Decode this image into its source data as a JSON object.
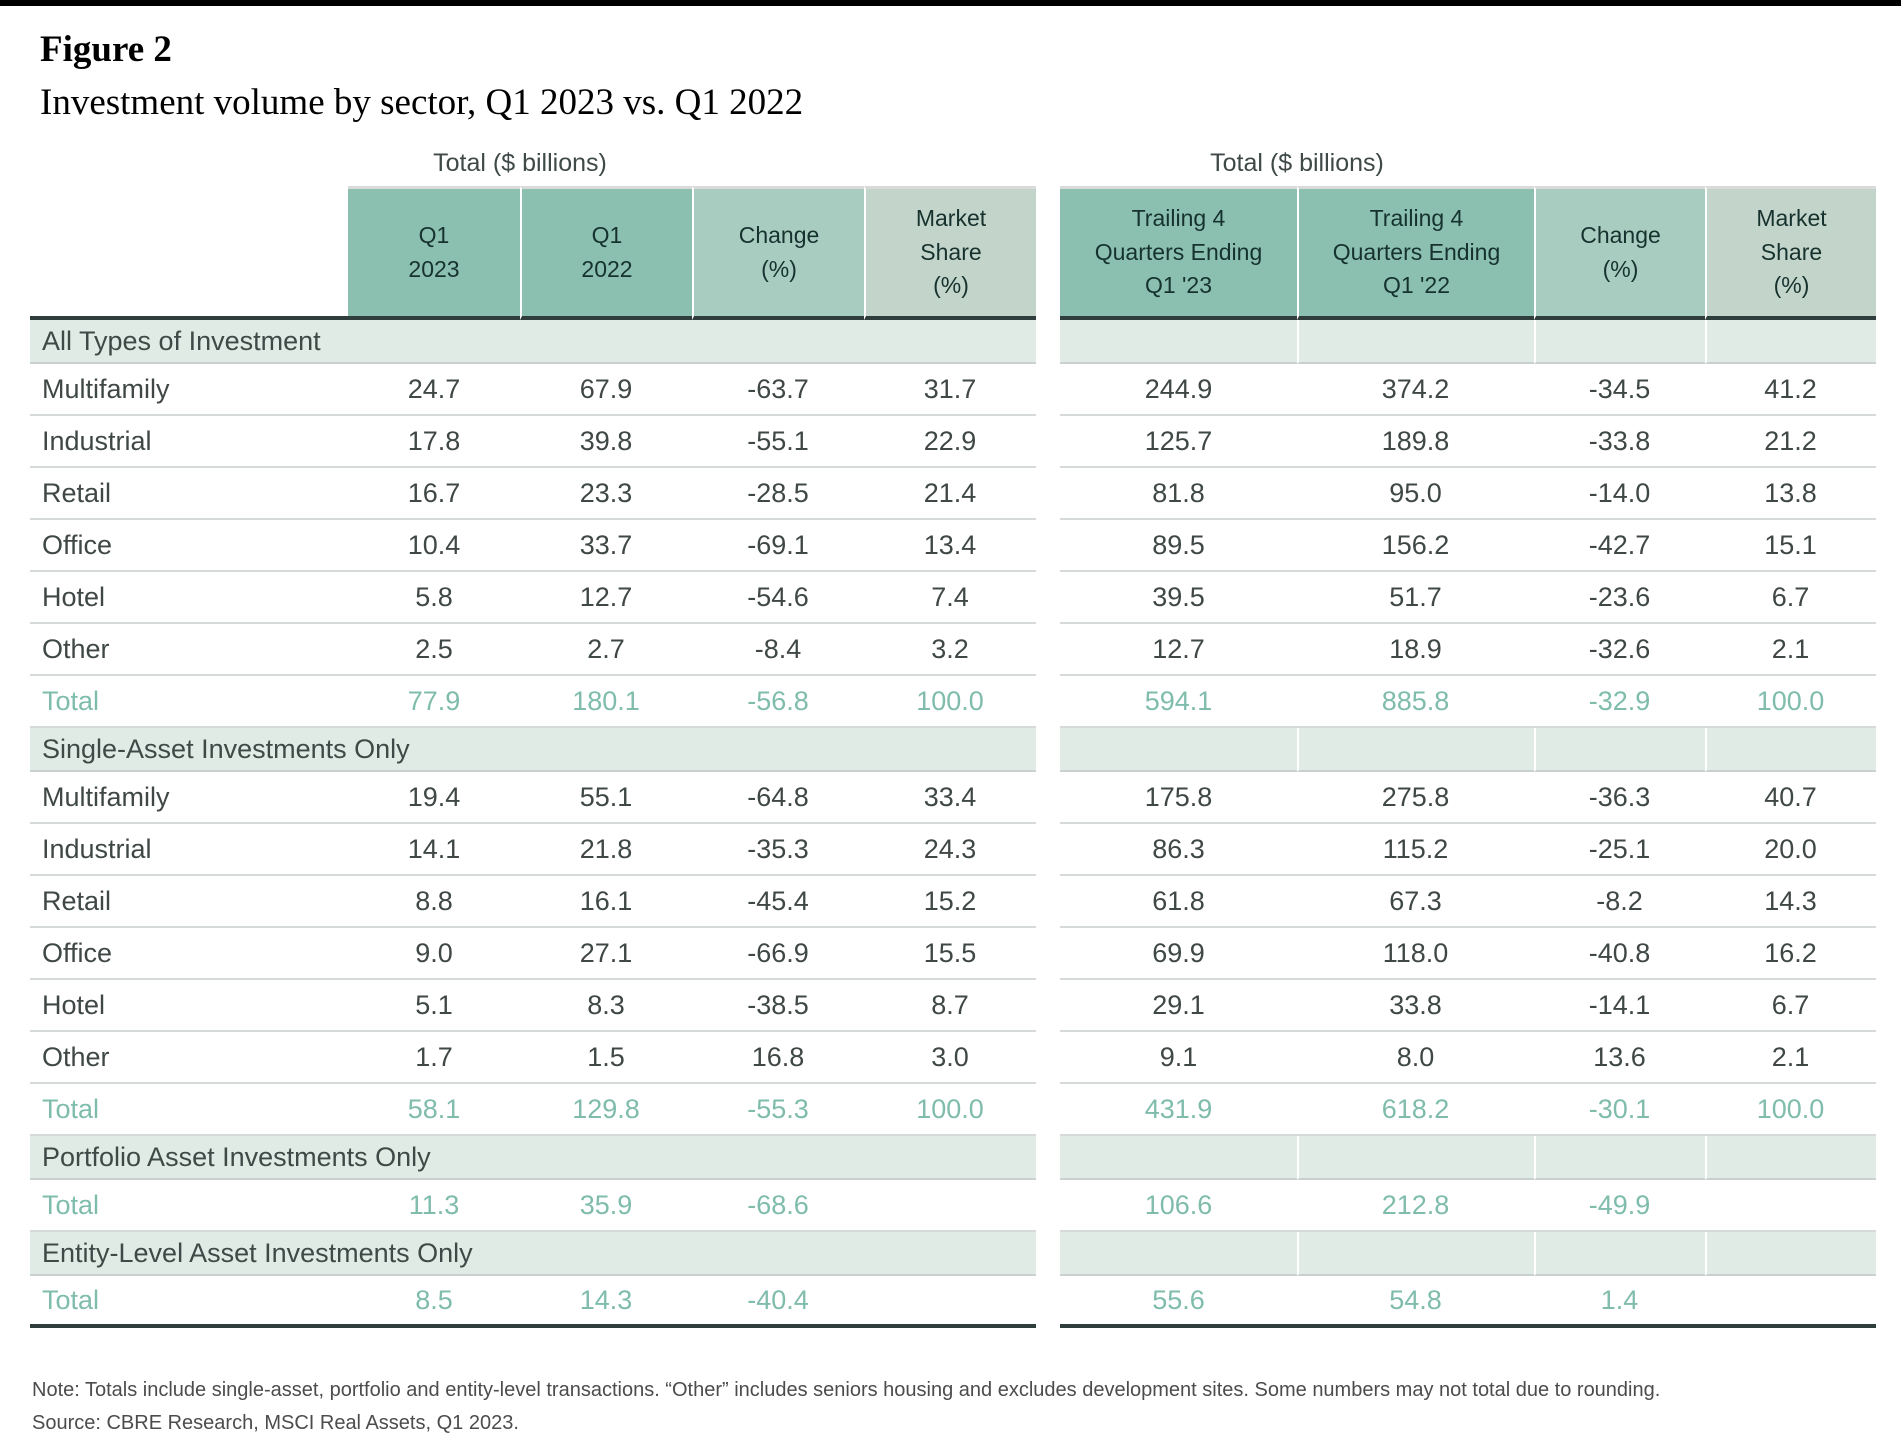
{
  "figure": {
    "label": "Figure 2",
    "title": "Investment volume by sector, Q1 2023 vs. Q1 2022"
  },
  "chart_data": {
    "type": "table",
    "group_captions": {
      "left": "Total ($ billions)",
      "right": "Total ($ billions)"
    },
    "columns": {
      "left": [
        [
          "Q1",
          "2023"
        ],
        [
          "Q1",
          "2022"
        ],
        [
          "Change",
          "(%)"
        ],
        [
          "Market",
          "Share",
          "(%)"
        ]
      ],
      "right": [
        [
          "Trailing 4",
          "Quarters Ending",
          "Q1 '23"
        ],
        [
          "Trailing 4",
          "Quarters Ending",
          "Q1 '22"
        ],
        [
          "Change",
          "(%)"
        ],
        [
          "Market",
          "Share",
          "(%)"
        ]
      ]
    },
    "sections": [
      {
        "title": "All Types of Investment",
        "rows": [
          {
            "label": "Multifamily",
            "is_total": false,
            "left": [
              "24.7",
              "67.9",
              "-63.7",
              "31.7"
            ],
            "right": [
              "244.9",
              "374.2",
              "-34.5",
              "41.2"
            ]
          },
          {
            "label": "Industrial",
            "is_total": false,
            "left": [
              "17.8",
              "39.8",
              "-55.1",
              "22.9"
            ],
            "right": [
              "125.7",
              "189.8",
              "-33.8",
              "21.2"
            ]
          },
          {
            "label": "Retail",
            "is_total": false,
            "left": [
              "16.7",
              "23.3",
              "-28.5",
              "21.4"
            ],
            "right": [
              "81.8",
              "95.0",
              "-14.0",
              "13.8"
            ]
          },
          {
            "label": "Office",
            "is_total": false,
            "left": [
              "10.4",
              "33.7",
              "-69.1",
              "13.4"
            ],
            "right": [
              "89.5",
              "156.2",
              "-42.7",
              "15.1"
            ]
          },
          {
            "label": "Hotel",
            "is_total": false,
            "left": [
              "5.8",
              "12.7",
              "-54.6",
              "7.4"
            ],
            "right": [
              "39.5",
              "51.7",
              "-23.6",
              "6.7"
            ]
          },
          {
            "label": "Other",
            "is_total": false,
            "left": [
              "2.5",
              "2.7",
              "-8.4",
              "3.2"
            ],
            "right": [
              "12.7",
              "18.9",
              "-32.6",
              "2.1"
            ]
          },
          {
            "label": "Total",
            "is_total": true,
            "left": [
              "77.9",
              "180.1",
              "-56.8",
              "100.0"
            ],
            "right": [
              "594.1",
              "885.8",
              "-32.9",
              "100.0"
            ]
          }
        ]
      },
      {
        "title": "Single-Asset Investments Only",
        "rows": [
          {
            "label": "Multifamily",
            "is_total": false,
            "left": [
              "19.4",
              "55.1",
              "-64.8",
              "33.4"
            ],
            "right": [
              "175.8",
              "275.8",
              "-36.3",
              "40.7"
            ]
          },
          {
            "label": "Industrial",
            "is_total": false,
            "left": [
              "14.1",
              "21.8",
              "-35.3",
              "24.3"
            ],
            "right": [
              "86.3",
              "115.2",
              "-25.1",
              "20.0"
            ]
          },
          {
            "label": "Retail",
            "is_total": false,
            "left": [
              "8.8",
              "16.1",
              "-45.4",
              "15.2"
            ],
            "right": [
              "61.8",
              "67.3",
              "-8.2",
              "14.3"
            ]
          },
          {
            "label": "Office",
            "is_total": false,
            "left": [
              "9.0",
              "27.1",
              "-66.9",
              "15.5"
            ],
            "right": [
              "69.9",
              "118.0",
              "-40.8",
              "16.2"
            ]
          },
          {
            "label": "Hotel",
            "is_total": false,
            "left": [
              "5.1",
              "8.3",
              "-38.5",
              "8.7"
            ],
            "right": [
              "29.1",
              "33.8",
              "-14.1",
              "6.7"
            ]
          },
          {
            "label": "Other",
            "is_total": false,
            "left": [
              "1.7",
              "1.5",
              "16.8",
              "3.0"
            ],
            "right": [
              "9.1",
              "8.0",
              "13.6",
              "2.1"
            ]
          },
          {
            "label": "Total",
            "is_total": true,
            "left": [
              "58.1",
              "129.8",
              "-55.3",
              "100.0"
            ],
            "right": [
              "431.9",
              "618.2",
              "-30.1",
              "100.0"
            ]
          }
        ]
      },
      {
        "title": "Portfolio Asset Investments Only",
        "rows": [
          {
            "label": "Total",
            "is_total": true,
            "left": [
              "11.3",
              "35.9",
              "-68.6",
              ""
            ],
            "right": [
              "106.6",
              "212.8",
              "-49.9",
              ""
            ]
          }
        ]
      },
      {
        "title": "Entity-Level Asset Investments Only",
        "rows": [
          {
            "label": "Total",
            "is_total": true,
            "left": [
              "8.5",
              "14.3",
              "-40.4",
              ""
            ],
            "right": [
              "55.6",
              "54.8",
              "1.4",
              ""
            ]
          }
        ]
      }
    ]
  },
  "notes": {
    "note": "Note: Totals include single-asset, portfolio and entity-level transactions. “Other” includes seniors housing and excludes development sites. Some numbers may not total due to rounding.",
    "source": "Source: CBRE Research, MSCI Real Assets, Q1 2023."
  },
  "colors": {
    "header_teal": "#8bbfb0",
    "header_teal_light": "#a9ccc0",
    "header_gray_green": "#c3d4ca",
    "section_band": "#e1ebe5",
    "total_text": "#7fbcac",
    "heavy_rule": "#2f3e3c",
    "body_text": "#3f4846",
    "top_bar": "#000000"
  }
}
